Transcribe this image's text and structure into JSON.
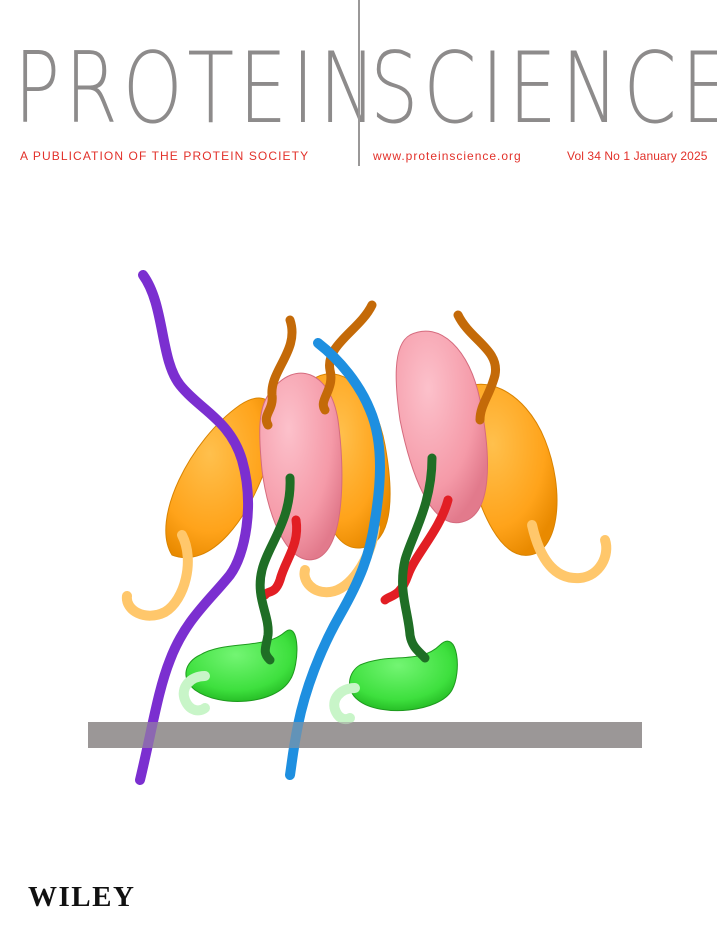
{
  "masthead": {
    "title_left": "PROTEIN",
    "title_right": "SCIENCE",
    "tagline": "A PUBLICATION OF THE PROTEIN SOCIETY",
    "url": "www.proteinscience.org",
    "issue": "Vol 34 No 1 January 2025"
  },
  "cover_art": {
    "colors": {
      "membrane": "#9b9898",
      "purple_strand": "#7b2fd0",
      "blue_strand": "#1e8fe0",
      "orange_domain": "#ffa31a",
      "pink_domain": "#f59aa8",
      "green_domain": "#3ee03e",
      "dark_green_linker": "#1f6e25",
      "red_linker": "#e21e24",
      "brown_tail": "#c46a08",
      "pale_orange_loop": "#ffc76b",
      "pale_green_loop": "#c8f5c8"
    }
  },
  "publisher": {
    "name": "WILEY"
  },
  "colors": {
    "title_gray": "#8d8b8b",
    "accent_red": "#e2312a"
  }
}
